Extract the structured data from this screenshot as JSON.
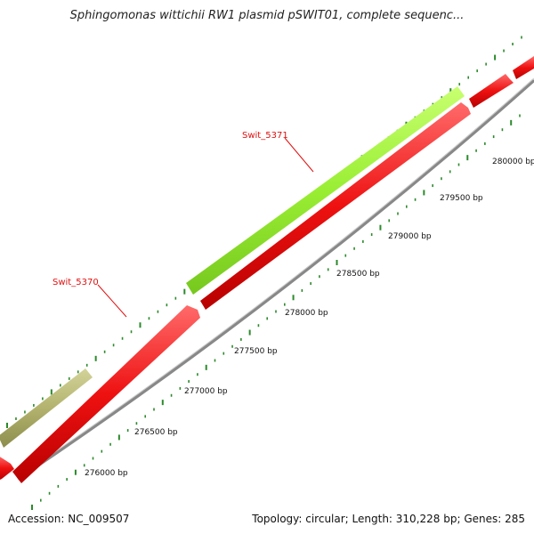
{
  "title": "Sphingomonas wittichii RW1 plasmid pSWIT01, complete sequenc...",
  "accession_text": "Accession: NC_009507",
  "summary_text": "Topology: circular; Length: 310,228 bp; Genes: 285",
  "colors": {
    "reverse_gene": "#ee1111",
    "forward_gene_green": "#99ee33",
    "forward_gene_olive": "#b3b36e",
    "backbone": "#8a8a8a",
    "tick": "#2b8a2b",
    "gene_label": "#e01010"
  },
  "bp_ticks": [
    {
      "label": "276000 bp"
    },
    {
      "label": "276500 bp"
    },
    {
      "label": "277000 bp"
    },
    {
      "label": "277500 bp"
    },
    {
      "label": "278000 bp"
    },
    {
      "label": "278500 bp"
    },
    {
      "label": "279000 bp"
    },
    {
      "label": "279500 bp"
    },
    {
      "label": "280000 bp"
    }
  ],
  "gene_labels": [
    {
      "name": "Swit_5370"
    },
    {
      "name": "Swit_5371"
    }
  ]
}
